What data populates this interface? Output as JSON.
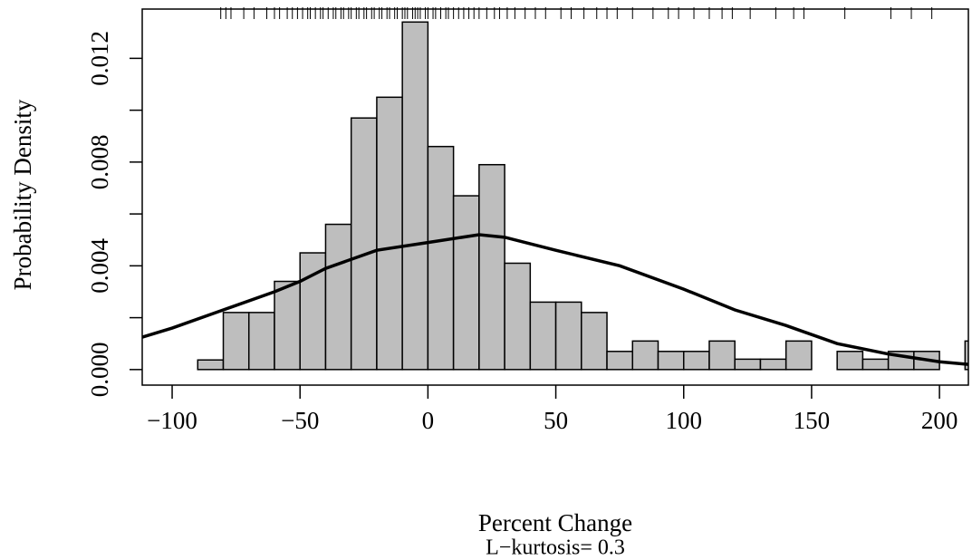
{
  "chart_data": {
    "type": "histogram",
    "y_label": "Probability Density",
    "x_label": "Percent Change",
    "subtitle": "L−kurtosis= 0.3",
    "bins": [
      -90,
      -80,
      -70,
      -60,
      -50,
      -40,
      -30,
      -20,
      -10,
      0,
      10,
      20,
      30,
      40,
      50,
      60,
      70,
      80,
      90,
      100,
      110,
      120,
      130,
      140,
      150,
      160,
      170,
      180,
      190,
      200,
      210,
      220
    ],
    "values": [
      0.00037,
      0.0022,
      0.0022,
      0.0034,
      0.0045,
      0.0056,
      0.0097,
      0.0105,
      0.0134,
      0.0086,
      0.0067,
      0.0079,
      0.0041,
      0.0026,
      0.0026,
      0.0022,
      0.0007,
      0.0011,
      0.0007,
      0.0007,
      0.0011,
      0.0004,
      0.0004,
      0.0011,
      0,
      0.0007,
      0.0004,
      0.0007,
      0.0007,
      0,
      0.0011
    ],
    "color": "#bebebe",
    "curve": {
      "color": "#000000",
      "x": [
        -111.7,
        -100,
        -80,
        -60,
        -50,
        -40,
        -20,
        0,
        20,
        30,
        50,
        75,
        100,
        120,
        140,
        160,
        180,
        200,
        211.3
      ],
      "y": [
        0.00125,
        0.0016,
        0.0023,
        0.003,
        0.0034,
        0.0039,
        0.0046,
        0.0049,
        0.0052,
        0.0051,
        0.0046,
        0.004,
        0.0031,
        0.0023,
        0.0017,
        0.001,
        0.0006,
        0.0003,
        0.0002
      ]
    },
    "rug": [
      -81,
      -79,
      -77,
      -72,
      -68,
      -63,
      -60,
      -58,
      -55,
      -53,
      -51,
      -49,
      -47,
      -46,
      -44,
      -42,
      -41,
      -39,
      -37,
      -36,
      -34,
      -33,
      -31,
      -30,
      -28,
      -27,
      -25,
      -24,
      -22,
      -21,
      -19,
      -18,
      -16,
      -15,
      -13,
      -12,
      -10,
      -9,
      -8,
      -6,
      -5,
      -4,
      -3,
      -1,
      0,
      2,
      3,
      5,
      7,
      8,
      10,
      12,
      14,
      16,
      18,
      20,
      23,
      26,
      28,
      31,
      34,
      38,
      42,
      46,
      52,
      56,
      61,
      66,
      70,
      74,
      80,
      88,
      94,
      98,
      104,
      110,
      115,
      119,
      126,
      136,
      143,
      147,
      163,
      181,
      189,
      197
    ],
    "xlim": [
      -111.7,
      211.3
    ],
    "ylim": [
      -0.0006,
      0.0139
    ],
    "xticks": [
      {
        "value": -100,
        "label": "−100"
      },
      {
        "value": -50,
        "label": "−50"
      },
      0,
      50,
      100,
      150,
      200
    ],
    "yticks": [
      {
        "value": 0,
        "label": "0.000"
      },
      {
        "value": 0.004,
        "label": "0.004"
      },
      {
        "value": 0.008,
        "label": "0.008"
      },
      {
        "value": 0.012,
        "label": "0.012"
      }
    ],
    "yminor_ticks": [
      0.002,
      0.006,
      0.01
    ]
  }
}
